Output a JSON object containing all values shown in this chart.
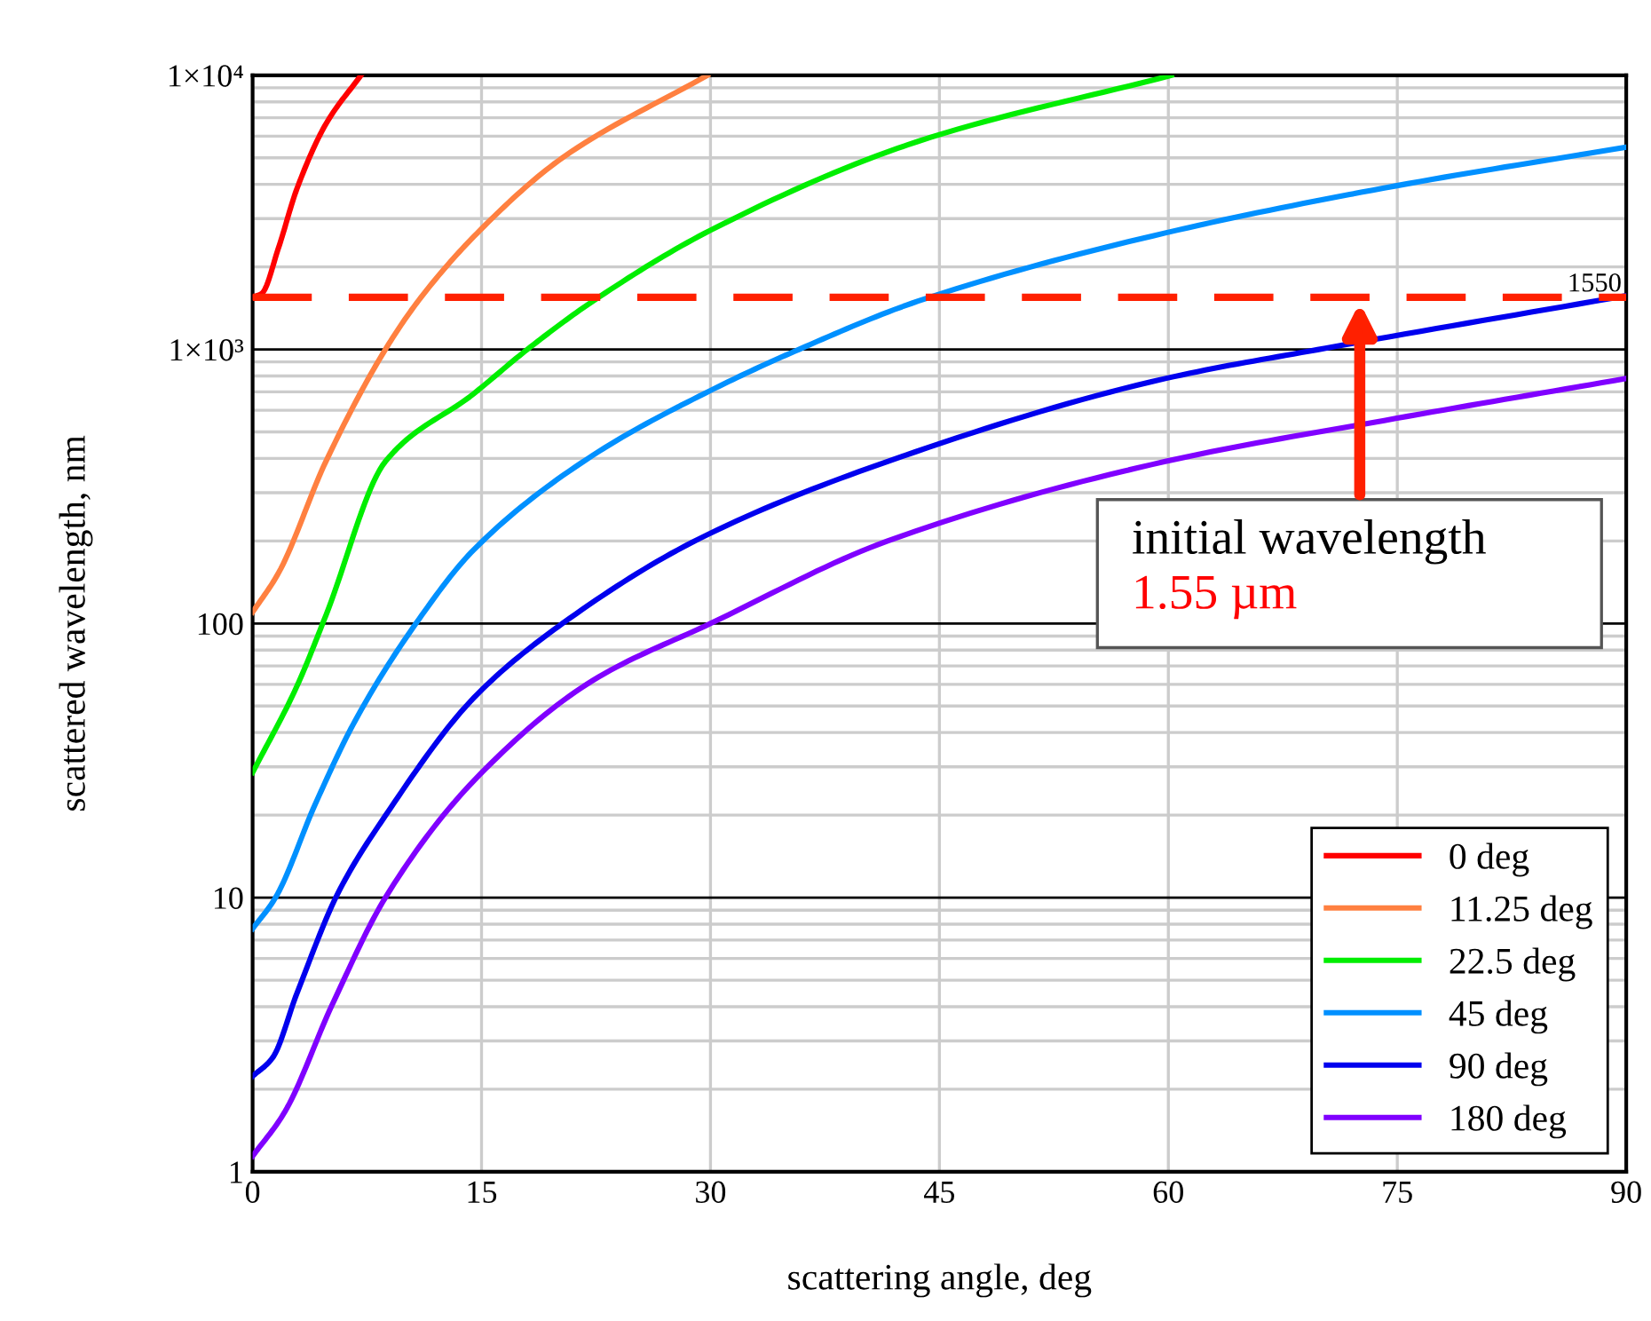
{
  "chart_data": {
    "type": "line",
    "xlabel": "scattering angle, deg",
    "ylabel": "scattered wavelength, nm",
    "log": "y",
    "grid": true,
    "legend": "bottom right",
    "line_style": "solid",
    "xlim": [
      0,
      90
    ],
    "xticks": [
      0,
      15,
      30,
      45,
      60,
      75,
      90
    ],
    "ylim": [
      1,
      10000
    ],
    "yticks": [
      1,
      10,
      100,
      {
        "value": 1000,
        "label": "1×10³"
      },
      {
        "value": 10000,
        "label": "1×10⁴"
      }
    ],
    "series": [
      {
        "name": "0 deg",
        "color": "#ff0000",
        "x": [
          0,
          0.6,
          1.7,
          2.9,
          4.8,
          7.1
        ],
        "values": [
          1550,
          1600,
          2350,
          3850,
          6640,
          10000
        ]
      },
      {
        "name": "11.25 deg",
        "color": "#ff8040",
        "x": [
          0,
          1.7,
          4.8,
          8.7,
          11.0,
          14.9,
          20.3,
          29.8
        ],
        "values": [
          110,
          153,
          390,
          1000,
          1540,
          2720,
          5000,
          10000
        ]
      },
      {
        "name": "22.5 deg",
        "color": "#00ee00",
        "x": [
          0,
          2.9,
          4.8,
          8.7,
          14.5,
          18.0,
          22.3,
          30,
          43.6,
          60.2
        ],
        "values": [
          28.6,
          59,
          107,
          390,
          690,
          1000,
          1500,
          2720,
          5740,
          10000
        ]
      },
      {
        "name": "45 deg",
        "color": "#0090ff",
        "x": [
          0,
          1.5,
          4.1,
          6.7,
          10.7,
          14.5,
          22.3,
          30,
          35.8,
          43.6,
          59.8,
          74.9,
          90
        ],
        "values": [
          7.7,
          10,
          21.9,
          44,
          100,
          186,
          411,
          708,
          1000,
          1500,
          2660,
          3950,
          5470
        ]
      },
      {
        "name": "90 deg",
        "color": "#0000ee",
        "x": [
          0,
          1.3,
          2.9,
          5.6,
          8.7,
          14.5,
          20.3,
          29.2,
          41.6,
          59.8,
          70.3,
          90
        ],
        "values": [
          2.23,
          2.6,
          4.47,
          10.4,
          19.9,
          53.6,
          100,
          203,
          390,
          783,
          1010,
          1570
        ]
      },
      {
        "name": "180 deg",
        "color": "#8000ff",
        "x": [
          0,
          2.1,
          5.2,
          8.7,
          14.5,
          22.3,
          30,
          41.6,
          59.8,
          74.9,
          90
        ],
        "values": [
          1.14,
          1.65,
          4.05,
          10,
          26.7,
          62,
          100,
          200,
          390,
          560,
          783
        ]
      }
    ],
    "ref_lines": [
      {
        "axis": "y",
        "value": 1550,
        "label": "1550",
        "color": "#ff2000",
        "line_style": "dashed"
      }
    ],
    "annotations": [
      "initial wavelength",
      "1.55 µm"
    ]
  }
}
